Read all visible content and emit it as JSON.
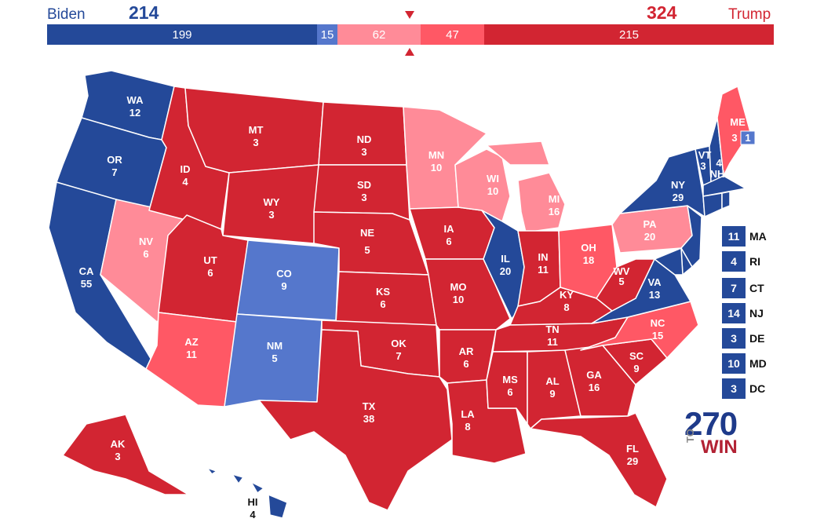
{
  "colors": {
    "safe_dem": "#244999",
    "lean_dem": "#5577cc",
    "tilt_rep": "#ff8b98",
    "lean_rep": "#ff5865",
    "safe_rep": "#d22532"
  },
  "header": {
    "dem_name": "Biden",
    "dem_total": "214",
    "rep_name": "Trump",
    "rep_total": "324"
  },
  "bar": [
    {
      "value": 199,
      "label": "199",
      "rating": "safe_dem"
    },
    {
      "value": 15,
      "label": "15",
      "rating": "lean_dem"
    },
    {
      "value": 62,
      "label": "62",
      "rating": "tilt_rep"
    },
    {
      "value": 47,
      "label": "47",
      "rating": "lean_rep"
    },
    {
      "value": 215,
      "label": "215",
      "rating": "safe_rep"
    }
  ],
  "states": {
    "WA": {
      "abbr": "WA",
      "ev": "12",
      "rating": "safe_dem"
    },
    "OR": {
      "abbr": "OR",
      "ev": "7",
      "rating": "safe_dem"
    },
    "CA": {
      "abbr": "CA",
      "ev": "55",
      "rating": "safe_dem"
    },
    "NV": {
      "abbr": "NV",
      "ev": "6",
      "rating": "tilt_rep"
    },
    "ID": {
      "abbr": "ID",
      "ev": "4",
      "rating": "safe_rep"
    },
    "MT": {
      "abbr": "MT",
      "ev": "3",
      "rating": "safe_rep"
    },
    "WY": {
      "abbr": "WY",
      "ev": "3",
      "rating": "safe_rep"
    },
    "UT": {
      "abbr": "UT",
      "ev": "6",
      "rating": "safe_rep"
    },
    "AZ": {
      "abbr": "AZ",
      "ev": "11",
      "rating": "lean_rep"
    },
    "CO": {
      "abbr": "CO",
      "ev": "9",
      "rating": "lean_dem"
    },
    "NM": {
      "abbr": "NM",
      "ev": "5",
      "rating": "lean_dem"
    },
    "ND": {
      "abbr": "ND",
      "ev": "3",
      "rating": "safe_rep"
    },
    "SD": {
      "abbr": "SD",
      "ev": "3",
      "rating": "safe_rep"
    },
    "NE": {
      "abbr": "NE",
      "ev": "5",
      "rating": "safe_rep"
    },
    "KS": {
      "abbr": "KS",
      "ev": "6",
      "rating": "safe_rep"
    },
    "OK": {
      "abbr": "OK",
      "ev": "7",
      "rating": "safe_rep"
    },
    "TX": {
      "abbr": "TX",
      "ev": "38",
      "rating": "safe_rep"
    },
    "MN": {
      "abbr": "MN",
      "ev": "10",
      "rating": "tilt_rep"
    },
    "IA": {
      "abbr": "IA",
      "ev": "6",
      "rating": "safe_rep"
    },
    "MO": {
      "abbr": "MO",
      "ev": "10",
      "rating": "safe_rep"
    },
    "AR": {
      "abbr": "AR",
      "ev": "6",
      "rating": "safe_rep"
    },
    "LA": {
      "abbr": "LA",
      "ev": "8",
      "rating": "safe_rep"
    },
    "WI": {
      "abbr": "WI",
      "ev": "10",
      "rating": "tilt_rep"
    },
    "IL": {
      "abbr": "IL",
      "ev": "20",
      "rating": "safe_dem"
    },
    "MI": {
      "abbr": "MI",
      "ev": "16",
      "rating": "tilt_rep"
    },
    "IN": {
      "abbr": "IN",
      "ev": "11",
      "rating": "safe_rep"
    },
    "OH": {
      "abbr": "OH",
      "ev": "18",
      "rating": "lean_rep"
    },
    "KY": {
      "abbr": "KY",
      "ev": "8",
      "rating": "safe_rep"
    },
    "TN": {
      "abbr": "TN",
      "ev": "11",
      "rating": "safe_rep"
    },
    "MS": {
      "abbr": "MS",
      "ev": "6",
      "rating": "safe_rep"
    },
    "AL": {
      "abbr": "AL",
      "ev": "9",
      "rating": "safe_rep"
    },
    "GA": {
      "abbr": "GA",
      "ev": "16",
      "rating": "safe_rep"
    },
    "FL": {
      "abbr": "FL",
      "ev": "29",
      "rating": "safe_rep"
    },
    "SC": {
      "abbr": "SC",
      "ev": "9",
      "rating": "safe_rep"
    },
    "NC": {
      "abbr": "NC",
      "ev": "15",
      "rating": "lean_rep"
    },
    "VA": {
      "abbr": "VA",
      "ev": "13",
      "rating": "safe_dem"
    },
    "WV": {
      "abbr": "WV",
      "ev": "5",
      "rating": "safe_rep"
    },
    "PA": {
      "abbr": "PA",
      "ev": "20",
      "rating": "tilt_rep"
    },
    "NY": {
      "abbr": "NY",
      "ev": "29",
      "rating": "safe_dem"
    },
    "VT": {
      "abbr": "VT",
      "ev": "3",
      "rating": "safe_dem"
    },
    "NH": {
      "abbr": "NH",
      "ev": "4",
      "rating": "safe_dem"
    },
    "ME": {
      "abbr": "ME",
      "ev": "3",
      "ev_split": "1",
      "rating": "lean_rep"
    },
    "AK": {
      "abbr": "AK",
      "ev": "3",
      "rating": "safe_rep"
    },
    "HI": {
      "abbr": "HI",
      "ev": "4",
      "rating": "safe_dem"
    }
  },
  "small_states": [
    {
      "ev": "11",
      "abbr": "MA"
    },
    {
      "ev": "4",
      "abbr": "RI"
    },
    {
      "ev": "7",
      "abbr": "CT"
    },
    {
      "ev": "14",
      "abbr": "NJ"
    },
    {
      "ev": "3",
      "abbr": "DE"
    },
    {
      "ev": "10",
      "abbr": "MD"
    },
    {
      "ev": "3",
      "abbr": "DC"
    }
  ],
  "logo": {
    "number": "270",
    "to": "TO",
    "win": "WIN"
  }
}
